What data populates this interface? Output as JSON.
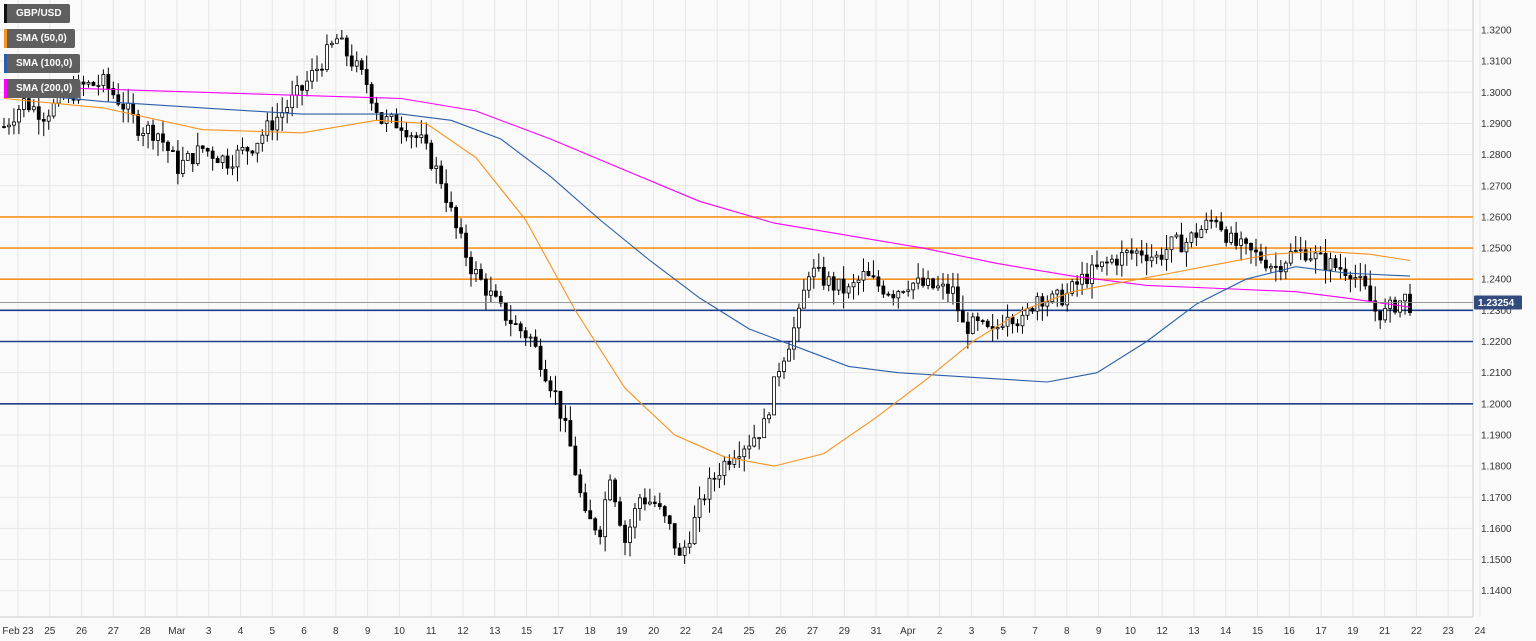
{
  "legend": [
    {
      "label": "GBP/USD",
      "color": "#000000"
    },
    {
      "label": "SMA (50,0)",
      "color": "#f7931e"
    },
    {
      "label": "SMA (100,0)",
      "color": "#2a5fa8"
    },
    {
      "label": "SMA (200,0)",
      "color": "#ff00ff"
    }
  ],
  "chart_data": {
    "type": "candlestick",
    "title": "",
    "xlabel": "",
    "ylabel": "",
    "ylim": [
      1.135,
      1.325
    ],
    "y_ticks": [
      "1.3200",
      "1.3100",
      "1.3000",
      "1.2900",
      "1.2800",
      "1.2700",
      "1.2600",
      "1.2500",
      "1.2400",
      "1.2300",
      "1.2200",
      "1.2100",
      "1.2000",
      "1.1900",
      "1.1800",
      "1.1700",
      "1.1600",
      "1.1500",
      "1.1400"
    ],
    "x_ticks": [
      "Feb 23",
      "25",
      "26",
      "27",
      "28",
      "Mar",
      "3",
      "4",
      "5",
      "6",
      "8",
      "9",
      "10",
      "11",
      "12",
      "13",
      "15",
      "17",
      "18",
      "19",
      "20",
      "22",
      "24",
      "25",
      "26",
      "27",
      "29",
      "31",
      "Apr",
      "2",
      "3",
      "5",
      "7",
      "8",
      "9",
      "10",
      "12",
      "13",
      "14",
      "15",
      "16",
      "17",
      "19",
      "21",
      "22",
      "23",
      "24"
    ],
    "current_price": "1.23254",
    "resistance_levels": [
      1.26,
      1.25,
      1.24
    ],
    "support_levels": [
      1.23,
      1.22,
      1.2
    ],
    "close_path": [
      [
        0,
        1.289
      ],
      [
        4,
        1.297
      ],
      [
        8,
        1.293
      ],
      [
        12,
        1.298
      ],
      [
        16,
        1.302
      ],
      [
        20,
        1.303
      ],
      [
        24,
        1.296
      ],
      [
        27,
        1.289
      ],
      [
        31,
        1.287
      ],
      [
        35,
        1.276
      ],
      [
        40,
        1.282
      ],
      [
        45,
        1.278
      ],
      [
        50,
        1.283
      ],
      [
        55,
        1.292
      ],
      [
        60,
        1.301
      ],
      [
        64,
        1.31
      ],
      [
        67,
        1.317
      ],
      [
        70,
        1.31
      ],
      [
        73,
        1.303
      ],
      [
        76,
        1.291
      ],
      [
        80,
        1.29
      ],
      [
        84,
        1.284
      ],
      [
        88,
        1.272
      ],
      [
        91,
        1.256
      ],
      [
        94,
        1.244
      ],
      [
        97,
        1.237
      ],
      [
        100,
        1.23
      ],
      [
        103,
        1.225
      ],
      [
        106,
        1.221
      ],
      [
        108,
        1.214
      ],
      [
        111,
        1.203
      ],
      [
        114,
        1.186
      ],
      [
        117,
        1.163
      ],
      [
        120,
        1.16
      ],
      [
        122,
        1.178
      ],
      [
        125,
        1.156
      ],
      [
        128,
        1.17
      ],
      [
        131,
        1.168
      ],
      [
        134,
        1.16
      ],
      [
        136,
        1.15
      ],
      [
        138,
        1.158
      ],
      [
        141,
        1.171
      ],
      [
        144,
        1.179
      ],
      [
        147,
        1.185
      ],
      [
        150,
        1.188
      ],
      [
        153,
        1.193
      ],
      [
        156,
        1.212
      ],
      [
        158,
        1.22
      ],
      [
        160,
        1.228
      ],
      [
        162,
        1.243
      ],
      [
        164,
        1.241
      ],
      [
        167,
        1.238
      ],
      [
        170,
        1.236
      ],
      [
        173,
        1.241
      ],
      [
        176,
        1.238
      ],
      [
        179,
        1.236
      ],
      [
        182,
        1.239
      ],
      [
        185,
        1.238
      ],
      [
        188,
        1.237
      ],
      [
        191,
        1.236
      ],
      [
        193,
        1.225
      ],
      [
        196,
        1.225
      ],
      [
        199,
        1.222
      ],
      [
        202,
        1.23
      ],
      [
        205,
        1.226
      ],
      [
        208,
        1.235
      ],
      [
        211,
        1.233
      ],
      [
        214,
        1.235
      ],
      [
        217,
        1.24
      ],
      [
        220,
        1.243
      ],
      [
        223,
        1.246
      ],
      [
        226,
        1.248
      ],
      [
        229,
        1.249
      ],
      [
        232,
        1.247
      ],
      [
        235,
        1.251
      ],
      [
        238,
        1.252
      ],
      [
        241,
        1.256
      ],
      [
        244,
        1.26
      ],
      [
        247,
        1.252
      ],
      [
        250,
        1.249
      ],
      [
        253,
        1.247
      ],
      [
        256,
        1.244
      ],
      [
        259,
        1.248
      ],
      [
        262,
        1.249
      ],
      [
        265,
        1.246
      ],
      [
        268,
        1.244
      ],
      [
        271,
        1.243
      ],
      [
        274,
        1.236
      ],
      [
        276,
        1.23
      ],
      [
        278,
        1.229
      ],
      [
        280,
        1.232
      ],
      [
        282,
        1.234
      ],
      [
        283,
        1.232
      ]
    ],
    "sma_50": [
      [
        0,
        1.298
      ],
      [
        20,
        1.295
      ],
      [
        40,
        1.288
      ],
      [
        60,
        1.287
      ],
      [
        75,
        1.291
      ],
      [
        85,
        1.29
      ],
      [
        95,
        1.279
      ],
      [
        105,
        1.259
      ],
      [
        115,
        1.23
      ],
      [
        125,
        1.205
      ],
      [
        135,
        1.19
      ],
      [
        145,
        1.183
      ],
      [
        155,
        1.18
      ],
      [
        165,
        1.184
      ],
      [
        175,
        1.195
      ],
      [
        185,
        1.207
      ],
      [
        195,
        1.22
      ],
      [
        205,
        1.23
      ],
      [
        215,
        1.236
      ],
      [
        225,
        1.239
      ],
      [
        235,
        1.242
      ],
      [
        245,
        1.245
      ],
      [
        255,
        1.248
      ],
      [
        265,
        1.249
      ],
      [
        275,
        1.248
      ],
      [
        283,
        1.246
      ]
    ],
    "sma_100": [
      [
        0,
        1.3
      ],
      [
        20,
        1.297
      ],
      [
        40,
        1.295
      ],
      [
        60,
        1.293
      ],
      [
        80,
        1.293
      ],
      [
        90,
        1.291
      ],
      [
        100,
        1.285
      ],
      [
        110,
        1.273
      ],
      [
        120,
        1.259
      ],
      [
        130,
        1.246
      ],
      [
        140,
        1.234
      ],
      [
        150,
        1.224
      ],
      [
        160,
        1.218
      ],
      [
        170,
        1.212
      ],
      [
        180,
        1.21
      ],
      [
        190,
        1.209
      ],
      [
        200,
        1.208
      ],
      [
        210,
        1.207
      ],
      [
        220,
        1.21
      ],
      [
        230,
        1.22
      ],
      [
        240,
        1.232
      ],
      [
        250,
        1.24
      ],
      [
        260,
        1.244
      ],
      [
        270,
        1.242
      ],
      [
        283,
        1.241
      ]
    ],
    "sma_200": [
      [
        0,
        1.302
      ],
      [
        20,
        1.301
      ],
      [
        40,
        1.3
      ],
      [
        60,
        1.299
      ],
      [
        80,
        1.298
      ],
      [
        95,
        1.294
      ],
      [
        110,
        1.285
      ],
      [
        125,
        1.275
      ],
      [
        140,
        1.265
      ],
      [
        155,
        1.258
      ],
      [
        170,
        1.254
      ],
      [
        185,
        1.25
      ],
      [
        200,
        1.245
      ],
      [
        215,
        1.241
      ],
      [
        230,
        1.238
      ],
      [
        245,
        1.237
      ],
      [
        260,
        1.236
      ],
      [
        270,
        1.234
      ],
      [
        283,
        1.231
      ]
    ]
  },
  "colors": {
    "resistance": "#f7931e",
    "support": "#1f3f8a",
    "price_tag_bg": "#334b7d",
    "grid": "#e6e6e6"
  }
}
